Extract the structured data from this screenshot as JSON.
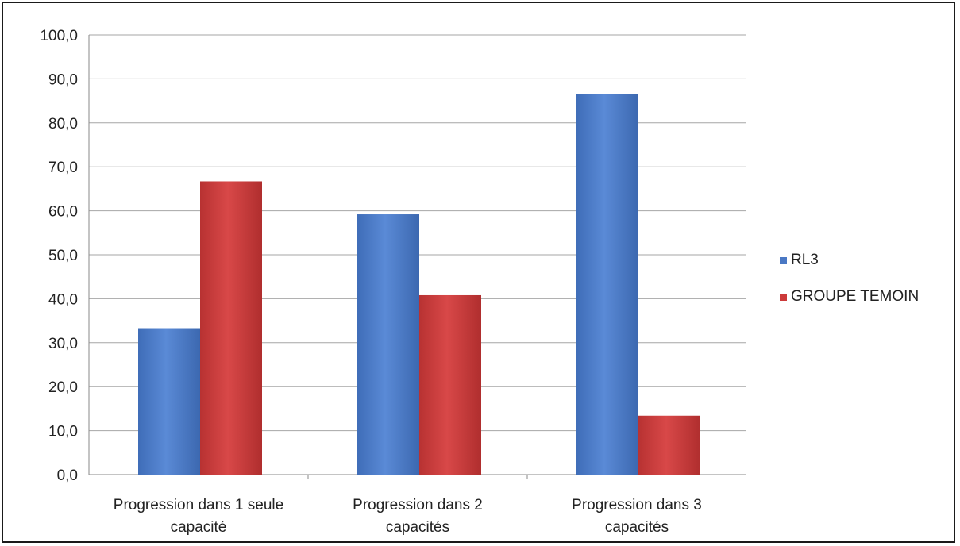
{
  "chart_data": {
    "type": "bar",
    "title": "",
    "xlabel": "",
    "ylabel": "",
    "categories": [
      [
        "Progression dans 1 seule",
        "capacité"
      ],
      [
        "Progression dans 2",
        "capacités"
      ],
      [
        "Progression dans 3",
        "capacités"
      ]
    ],
    "series": [
      {
        "name": "RL3",
        "color": "#4a78c4",
        "values": [
          33.3,
          59.2,
          86.6
        ]
      },
      {
        "name": "GROUPE TEMOIN",
        "color": "#cc3a3a",
        "values": [
          66.7,
          40.8,
          13.4
        ]
      }
    ],
    "ylim": [
      0,
      100
    ],
    "yticks": [
      "0,0",
      "10,0",
      "20,0",
      "30,0",
      "40,0",
      "50,0",
      "60,0",
      "70,0",
      "80,0",
      "90,0",
      "100,0"
    ],
    "grid": true,
    "legend_position": "right"
  }
}
